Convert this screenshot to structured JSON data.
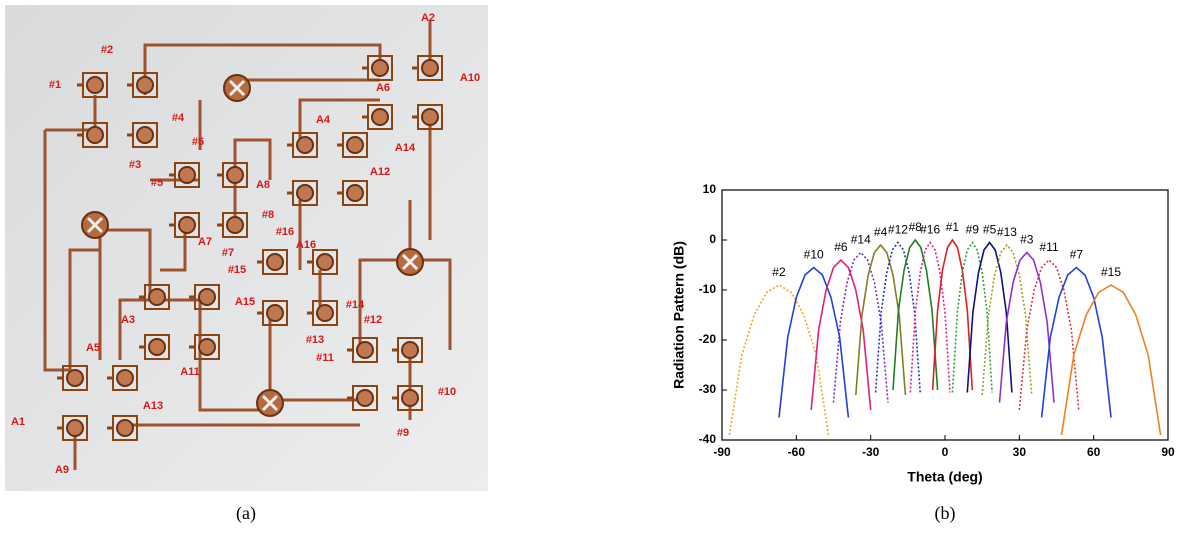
{
  "photo": {
    "caption": "(a)",
    "labels": [
      "#1",
      "#2",
      "#3",
      "#4",
      "#5",
      "#6",
      "#7",
      "#8",
      "#9",
      "#10",
      "#11",
      "#12",
      "#13",
      "#14",
      "#15",
      "#16",
      "A1",
      "A2",
      "A3",
      "A4",
      "A5",
      "A6",
      "A7",
      "A8",
      "A9",
      "A10",
      "A11",
      "A12",
      "A13",
      "A14",
      "A15",
      "A16"
    ]
  },
  "chart_data": {
    "type": "line",
    "caption": "(b)",
    "xlabel": "Theta (deg)",
    "ylabel": "Radiation Pattern (dB)",
    "xlim": [
      -90,
      90
    ],
    "xticks": [
      -90,
      -60,
      -30,
      0,
      30,
      60,
      90
    ],
    "ylim": [
      -40,
      10
    ],
    "yticks": [
      -40,
      -30,
      -20,
      -10,
      0,
      10
    ],
    "series": [
      {
        "name": "#2",
        "color": "#f5a030",
        "dashed": true,
        "x": [
          -87,
          -82,
          -77,
          -72,
          -67,
          -62,
          -57,
          -52,
          -47
        ],
        "values": [
          -39,
          -23,
          -15,
          -10.5,
          -9,
          -10.5,
          -15,
          -23,
          -39
        ]
      },
      {
        "name": "#10",
        "color": "#2040e0",
        "dashed": false,
        "x": [
          -67,
          -63.5,
          -60,
          -56.5,
          -53,
          -49.5,
          -46,
          -42.5,
          -39
        ],
        "values": [
          -35.5,
          -19.5,
          -11.5,
          -7,
          -5.5,
          -7,
          -11.5,
          -19.5,
          -35.5
        ]
      },
      {
        "name": "#6",
        "color": "#e0207a",
        "dashed": false,
        "x": [
          -54,
          -51,
          -48,
          -45,
          -42,
          -39,
          -36,
          -33,
          -30
        ],
        "values": [
          -34,
          -18,
          -10,
          -5.5,
          -4,
          -5.5,
          -10,
          -18,
          -34
        ]
      },
      {
        "name": "#14",
        "color": "#7030c0",
        "dashed": true,
        "x": [
          -45,
          -42.25,
          -39.5,
          -36.75,
          -34,
          -31.25,
          -28.5,
          -25.75,
          -23
        ],
        "values": [
          -32.5,
          -16.5,
          -8.5,
          -4,
          -2.5,
          -4,
          -8.5,
          -16.5,
          -32.5
        ]
      },
      {
        "name": "#4",
        "color": "#808020",
        "dashed": false,
        "x": [
          -36,
          -33.5,
          -31,
          -28.5,
          -26,
          -23.5,
          -21,
          -18.5,
          -16
        ],
        "values": [
          -31,
          -15,
          -7,
          -2.5,
          -1,
          -2.5,
          -7,
          -15,
          -31
        ]
      },
      {
        "name": "#12",
        "color": "#2030d0",
        "dashed": true,
        "x": [
          -28,
          -25.75,
          -23.5,
          -21.25,
          -19,
          -16.75,
          -14.5,
          -12.25,
          -10
        ],
        "values": [
          -30.5,
          -14.5,
          -6.5,
          -2,
          -0.5,
          -2,
          -6.5,
          -14.5,
          -30.5
        ]
      },
      {
        "name": "#8",
        "color": "#208020",
        "dashed": false,
        "x": [
          -21,
          -18.75,
          -16.5,
          -14.25,
          -12,
          -9.75,
          -7.5,
          -5.25,
          -3
        ],
        "values": [
          -30,
          -14,
          -6,
          -1.5,
          0,
          -1.5,
          -6,
          -14,
          -30
        ]
      },
      {
        "name": "#16",
        "color": "#e02080",
        "dashed": true,
        "x": [
          -14,
          -12,
          -10,
          -8,
          -6,
          -4,
          -2,
          0,
          2
        ],
        "values": [
          -30.5,
          -14.5,
          -6.5,
          -2,
          -0.5,
          -2,
          -6.5,
          -14.5,
          -30.5
        ]
      },
      {
        "name": "#1",
        "color": "#e02020",
        "dashed": false,
        "x": [
          -5,
          -3,
          -1,
          1,
          3,
          5,
          7,
          9,
          11
        ],
        "values": [
          -30,
          -14,
          -6,
          -1.5,
          0,
          -1.5,
          -6,
          -14,
          -30
        ]
      },
      {
        "name": "#9",
        "color": "#30a030",
        "dashed": true,
        "x": [
          3,
          5,
          7,
          9,
          11,
          13,
          15,
          17,
          19
        ],
        "values": [
          -30.5,
          -14.5,
          -6.5,
          -2,
          -0.5,
          -2,
          -6.5,
          -14.5,
          -30.5
        ]
      },
      {
        "name": "#5",
        "color": "#101080",
        "dashed": false,
        "x": [
          9,
          11.25,
          13.5,
          15.75,
          18,
          20.25,
          22.5,
          24.75,
          27
        ],
        "values": [
          -30.5,
          -14.5,
          -6.5,
          -2,
          -0.5,
          -2,
          -6.5,
          -14.5,
          -30.5
        ]
      },
      {
        "name": "#13",
        "color": "#a0a020",
        "dashed": true,
        "x": [
          15,
          17.5,
          20,
          22.5,
          25,
          27.5,
          30,
          32.5,
          35
        ],
        "values": [
          -31,
          -15,
          -7,
          -2.5,
          -1,
          -2.5,
          -7,
          -15,
          -31
        ]
      },
      {
        "name": "#3",
        "color": "#9030d0",
        "dashed": false,
        "x": [
          22,
          24.75,
          27.5,
          30.25,
          33,
          35.75,
          38.5,
          41.25,
          44
        ],
        "values": [
          -32.5,
          -16.5,
          -8.5,
          -4,
          -2.5,
          -4,
          -8.5,
          -16.5,
          -32.5
        ]
      },
      {
        "name": "#11",
        "color": "#e03040",
        "dashed": true,
        "x": [
          30,
          33,
          36,
          39,
          42,
          45,
          48,
          51,
          54
        ],
        "values": [
          -34,
          -18,
          -10,
          -5.5,
          -4,
          -5.5,
          -10,
          -18,
          -34
        ]
      },
      {
        "name": "#7",
        "color": "#2040e0",
        "dashed": false,
        "x": [
          39,
          42.5,
          46,
          49.5,
          53,
          56.5,
          60,
          63.5,
          67
        ],
        "values": [
          -35.5,
          -19.5,
          -11.5,
          -7,
          -5.5,
          -7,
          -11.5,
          -19.5,
          -35.5
        ]
      },
      {
        "name": "#15",
        "color": "#f08020",
        "dashed": false,
        "x": [
          47,
          52,
          57,
          62,
          67,
          72,
          77,
          82,
          87
        ],
        "values": [
          -39,
          -23,
          -15,
          -10.5,
          -9,
          -10.5,
          -15,
          -23,
          -39
        ]
      }
    ]
  }
}
